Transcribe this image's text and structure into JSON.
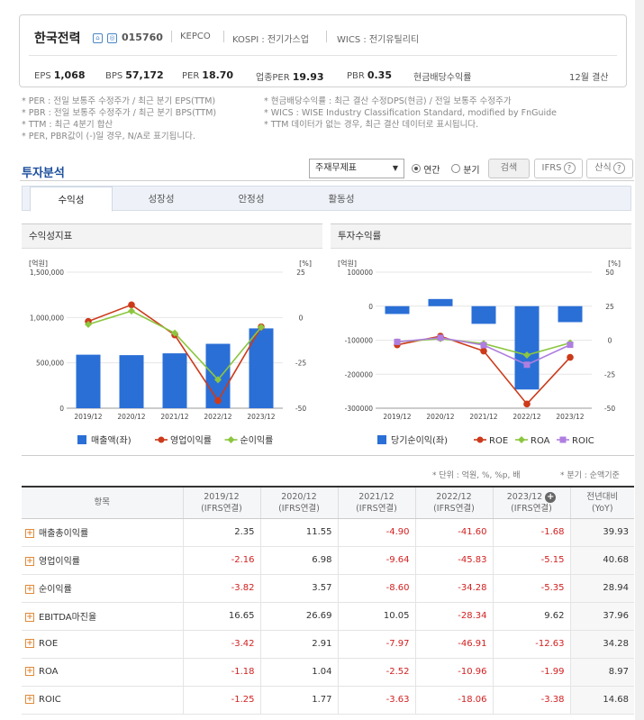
{
  "company": {
    "name": "한국전력",
    "code": "015760",
    "eng": "KEPCO",
    "market": "KOSPI : 전기가스업",
    "wics": "WICS : 전기유틸리티"
  },
  "kpis": [
    {
      "label": "EPS",
      "value": "1,068"
    },
    {
      "label": "BPS",
      "value": "57,172"
    },
    {
      "label": "PER",
      "value": "18.70"
    },
    {
      "label": "업종PER",
      "value": "19.93"
    },
    {
      "label": "PBR",
      "value": "0.35"
    },
    {
      "label": "현금배당수익률",
      "value": ""
    }
  ],
  "settle": "12월 결산",
  "notes_left": [
    "* PER : 전일 보통주 수정주가 / 최근 분기 EPS(TTM)",
    "* PBR : 전일 보통주 수정주가 / 최근 분기 BPS(TTM)",
    "* TTM : 최근 4분기 합산",
    "* PER, PBR값이 (-)일 경우, N/A로 표기됩니다."
  ],
  "notes_right": [
    "* 현금배당수익률 : 최근 결산 수정DPS(현금) / 전일 보통주 수정주가",
    "* WICS : WISE Industry Classification Standard, modified by FnGuide",
    "* TTM 데이터가 없는 경우, 최근 결산 데이터로 표시됩니다."
  ],
  "section": {
    "title": "투자분석",
    "select": "주재무제표",
    "radio_annual": "연간",
    "radio_quarter": "분기",
    "search": "검색",
    "ifrs": "IFRS",
    "calc": "산식"
  },
  "tabs": [
    "수익성",
    "성장성",
    "안정성",
    "활동성"
  ],
  "panel_left_title": "수익성지표",
  "panel_right_title": "투자수익률",
  "colors": {
    "bar": "#2a6fd6",
    "op": "#cc3a1a",
    "net": "#8cc63f",
    "roic": "#b07ee0",
    "negative": "#d32020"
  },
  "chart_data": [
    {
      "type": "bar",
      "categories": [
        "2019/12",
        "2020/12",
        "2021/12",
        "2022/12",
        "2023/12"
      ],
      "ylabel": "[억원]",
      "y2label": "[%]",
      "ylim": [
        0,
        1500000
      ],
      "y2lim": [
        -50,
        25
      ],
      "y_ticks": [
        "1,500,000",
        "1,000,000",
        "500,000",
        "0"
      ],
      "y2_ticks": [
        "25",
        "0",
        "-25",
        "-50"
      ],
      "series": [
        {
          "name": "매출액(좌)",
          "type": "bar",
          "axis": "left",
          "values": [
            590000,
            585000,
            605000,
            710000,
            880000
          ]
        },
        {
          "name": "영업이익률",
          "type": "line",
          "axis": "right",
          "values": [
            -2.16,
            6.98,
            -9.64,
            -45.83,
            -5.15
          ]
        },
        {
          "name": "순이익률",
          "type": "line",
          "axis": "right",
          "values": [
            -3.82,
            3.57,
            -8.6,
            -34.28,
            -5.35
          ]
        }
      ]
    },
    {
      "type": "bar",
      "categories": [
        "2019/12",
        "2020/12",
        "2021/12",
        "2022/12",
        "2023/12"
      ],
      "ylabel": "[억원]",
      "y2label": "[%]",
      "ylim": [
        -300000,
        100000
      ],
      "y2lim": [
        -50,
        50
      ],
      "y_ticks": [
        "100000",
        "0",
        "-100000",
        "-200000",
        "-300000"
      ],
      "y2_ticks": [
        "50",
        "25",
        "0",
        "-25",
        "-50"
      ],
      "series": [
        {
          "name": "당기순이익(좌)",
          "type": "bar",
          "axis": "left",
          "values": [
            -23000,
            21000,
            -52000,
            -245000,
            -47000
          ]
        },
        {
          "name": "ROE",
          "type": "line",
          "axis": "right",
          "values": [
            -3.42,
            2.91,
            -7.97,
            -46.91,
            -12.63
          ]
        },
        {
          "name": "ROA",
          "type": "line",
          "axis": "right",
          "values": [
            -1.18,
            1.04,
            -2.52,
            -10.96,
            -1.99
          ]
        },
        {
          "name": "ROIC",
          "type": "line",
          "axis": "right",
          "values": [
            -1.25,
            1.77,
            -3.63,
            -18.06,
            -3.38
          ]
        }
      ]
    }
  ],
  "units": "* 단위 : 억원, %, %p, 배",
  "units2": "* 분기 : 순액기준",
  "table": {
    "header_item": "항목",
    "years": [
      [
        "2019/12",
        "(IFRS연결)"
      ],
      [
        "2020/12",
        "(IFRS연결)"
      ],
      [
        "2021/12",
        "(IFRS연결)"
      ],
      [
        "2022/12",
        "(IFRS연결)"
      ],
      [
        "2023/12",
        "(IFRS연결)"
      ]
    ],
    "yoy": [
      "전년대비",
      "(YoY)"
    ],
    "rows": [
      {
        "label": "매출총이익률",
        "vals": [
          "2.35",
          "11.55",
          "-4.90",
          "-41.60",
          "-1.68"
        ],
        "yoy": "39.93"
      },
      {
        "label": "영업이익률",
        "vals": [
          "-2.16",
          "6.98",
          "-9.64",
          "-45.83",
          "-5.15"
        ],
        "yoy": "40.68"
      },
      {
        "label": "순이익률",
        "vals": [
          "-3.82",
          "3.57",
          "-8.60",
          "-34.28",
          "-5.35"
        ],
        "yoy": "28.94"
      },
      {
        "label": "EBITDA마진율",
        "vals": [
          "16.65",
          "26.69",
          "10.05",
          "-28.34",
          "9.62"
        ],
        "yoy": "37.96"
      },
      {
        "label": "ROE",
        "vals": [
          "-3.42",
          "2.91",
          "-7.97",
          "-46.91",
          "-12.63"
        ],
        "yoy": "34.28"
      },
      {
        "label": "ROA",
        "vals": [
          "-1.18",
          "1.04",
          "-2.52",
          "-10.96",
          "-1.99"
        ],
        "yoy": "8.97"
      },
      {
        "label": "ROIC",
        "vals": [
          "-1.25",
          "1.77",
          "-3.63",
          "-18.06",
          "-3.38"
        ],
        "yoy": "14.68"
      }
    ]
  }
}
